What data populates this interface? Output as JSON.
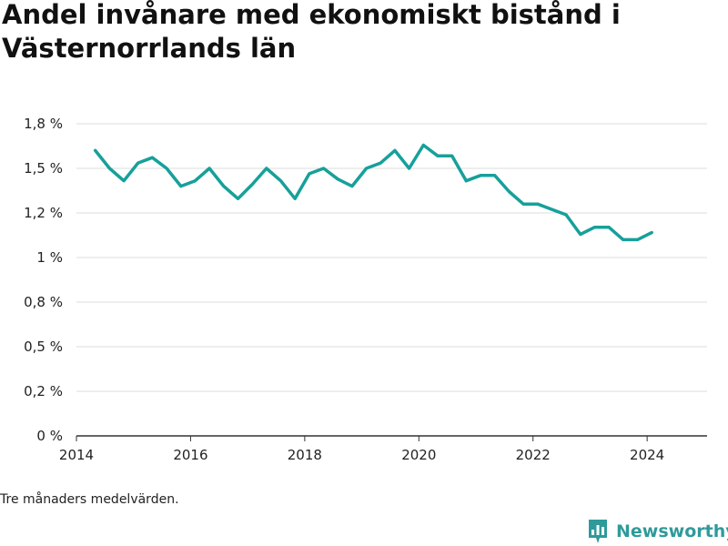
{
  "title": "Andel invånare med ekonomiskt bistånd i Västernorrlands län",
  "footnote": "Tre månaders medelvärden.",
  "brand": {
    "name": "Newsworthy",
    "color": "#2f9a9a"
  },
  "chart_data": {
    "type": "line",
    "title": "Andel invånare med ekonomiskt bistånd i Västernorrlands län",
    "xlabel": "",
    "ylabel": "",
    "ylim": [
      0,
      1.75
    ],
    "xlim": [
      2014.0,
      2025.05
    ],
    "grid": true,
    "line_color": "#17a09a",
    "y_ticks": [
      {
        "value": 0.0,
        "label": "0 %"
      },
      {
        "value": 0.25,
        "label": "0,2 %"
      },
      {
        "value": 0.5,
        "label": "0,5 %"
      },
      {
        "value": 0.75,
        "label": "0,8 %"
      },
      {
        "value": 1.0,
        "label": "1 %"
      },
      {
        "value": 1.25,
        "label": "1,2 %"
      },
      {
        "value": 1.5,
        "label": "1,5 %"
      },
      {
        "value": 1.75,
        "label": "1,8 %"
      }
    ],
    "x_ticks": [
      {
        "value": 2014,
        "label": "2014"
      },
      {
        "value": 2016,
        "label": "2016"
      },
      {
        "value": 2018,
        "label": "2018"
      },
      {
        "value": 2020,
        "label": "2020"
      },
      {
        "value": 2022,
        "label": "2022"
      },
      {
        "value": 2024,
        "label": "2024"
      }
    ],
    "series": [
      {
        "name": "",
        "x": [
          2014.33,
          2014.58,
          2014.83,
          2015.08,
          2015.33,
          2015.58,
          2015.83,
          2016.08,
          2016.33,
          2016.58,
          2016.83,
          2017.08,
          2017.33,
          2017.58,
          2017.83,
          2018.08,
          2018.33,
          2018.58,
          2018.83,
          2019.08,
          2019.33,
          2019.58,
          2019.83,
          2020.08,
          2020.33,
          2020.58,
          2020.83,
          2021.08,
          2021.33,
          2021.58,
          2021.83,
          2022.08,
          2022.33,
          2022.58,
          2022.83,
          2023.08,
          2023.33,
          2023.58,
          2023.83,
          2024.08
        ],
        "values": [
          1.6,
          1.5,
          1.43,
          1.53,
          1.56,
          1.5,
          1.4,
          1.43,
          1.5,
          1.4,
          1.33,
          1.41,
          1.5,
          1.43,
          1.33,
          1.47,
          1.5,
          1.44,
          1.4,
          1.5,
          1.53,
          1.6,
          1.5,
          1.63,
          1.57,
          1.57,
          1.43,
          1.46,
          1.46,
          1.37,
          1.3,
          1.3,
          1.27,
          1.24,
          1.13,
          1.17,
          1.17,
          1.1,
          1.1,
          1.14
        ]
      }
    ]
  }
}
